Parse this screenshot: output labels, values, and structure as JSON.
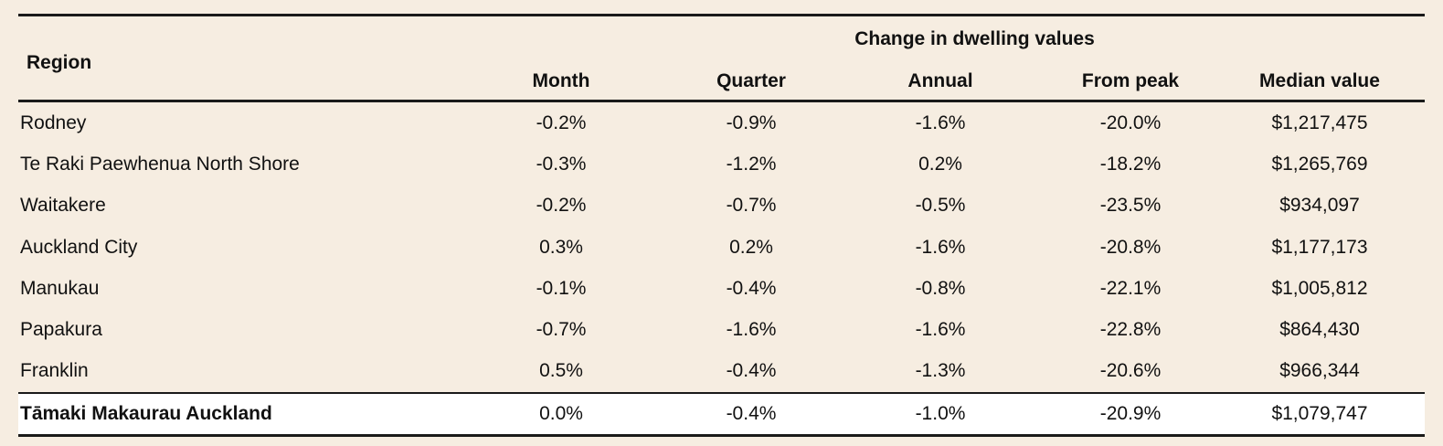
{
  "table": {
    "region_header": "Region",
    "group_header": "Change in dwelling values",
    "columns": [
      "Month",
      "Quarter",
      "Annual",
      "From peak",
      "Median value"
    ],
    "rows": [
      {
        "region": "Rodney",
        "values": [
          "-0.2%",
          "-0.9%",
          "-1.6%",
          "-20.0%",
          "$1,217,475"
        ]
      },
      {
        "region": "Te Raki Paewhenua North Shore",
        "values": [
          "-0.3%",
          "-1.2%",
          "0.2%",
          "-18.2%",
          "$1,265,769"
        ]
      },
      {
        "region": "Waitakere",
        "values": [
          "-0.2%",
          "-0.7%",
          "-0.5%",
          "-23.5%",
          "$934,097"
        ]
      },
      {
        "region": "Auckland City",
        "values": [
          "0.3%",
          "0.2%",
          "-1.6%",
          "-20.8%",
          "$1,177,173"
        ]
      },
      {
        "region": "Manukau",
        "values": [
          "-0.1%",
          "-0.4%",
          "-0.8%",
          "-22.1%",
          "$1,005,812"
        ]
      },
      {
        "region": "Papakura",
        "values": [
          "-0.7%",
          "-1.6%",
          "-1.6%",
          "-22.8%",
          "$864,430"
        ]
      },
      {
        "region": "Franklin",
        "values": [
          "0.5%",
          "-0.4%",
          "-1.3%",
          "-20.6%",
          "$966,344"
        ]
      }
    ],
    "total": {
      "region": "Tāmaki Makaurau Auckland",
      "values": [
        "0.0%",
        "-0.4%",
        "-1.0%",
        "-20.9%",
        "$1,079,747"
      ]
    }
  }
}
